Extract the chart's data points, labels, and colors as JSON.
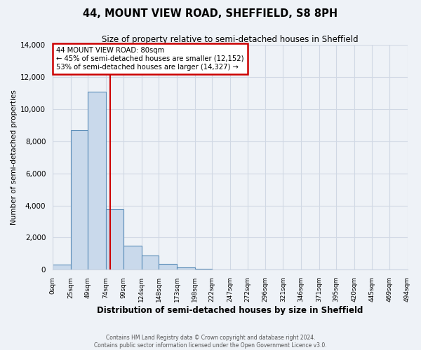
{
  "title": "44, MOUNT VIEW ROAD, SHEFFIELD, S8 8PH",
  "subtitle": "Size of property relative to semi-detached houses in Sheffield",
  "xlabel": "Distribution of semi-detached houses by size in Sheffield",
  "ylabel": "Number of semi-detached properties",
  "bar_values": [
    300,
    8700,
    11100,
    3750,
    1500,
    900,
    380,
    130,
    60,
    0,
    0,
    0,
    0,
    0,
    0,
    0,
    0,
    0,
    0,
    0
  ],
  "bin_edges": [
    0,
    25,
    49,
    74,
    99,
    124,
    148,
    173,
    198,
    222,
    247,
    272,
    296,
    321,
    346,
    371,
    395,
    420,
    445,
    469,
    494
  ],
  "tick_labels": [
    "0sqm",
    "25sqm",
    "49sqm",
    "74sqm",
    "99sqm",
    "124sqm",
    "148sqm",
    "173sqm",
    "198sqm",
    "222sqm",
    "247sqm",
    "272sqm",
    "296sqm",
    "321sqm",
    "346sqm",
    "371sqm",
    "395sqm",
    "420sqm",
    "445sqm",
    "469sqm",
    "494sqm"
  ],
  "bar_color": "#c9d9eb",
  "bar_edge_color": "#5b8db8",
  "property_line_x": 80,
  "annotation_line1": "44 MOUNT VIEW ROAD: 80sqm",
  "annotation_line2": "← 45% of semi-detached houses are smaller (12,152)",
  "annotation_line3": "53% of semi-detached houses are larger (14,327) →",
  "annotation_box_color": "#ffffff",
  "annotation_box_edge_color": "#cc0000",
  "vline_color": "#cc0000",
  "ylim": [
    0,
    14000
  ],
  "yticks": [
    0,
    2000,
    4000,
    6000,
    8000,
    10000,
    12000,
    14000
  ],
  "grid_color": "#d0d8e4",
  "background_color": "#eef2f7",
  "footer_line1": "Contains HM Land Registry data © Crown copyright and database right 2024.",
  "footer_line2": "Contains public sector information licensed under the Open Government Licence v3.0."
}
